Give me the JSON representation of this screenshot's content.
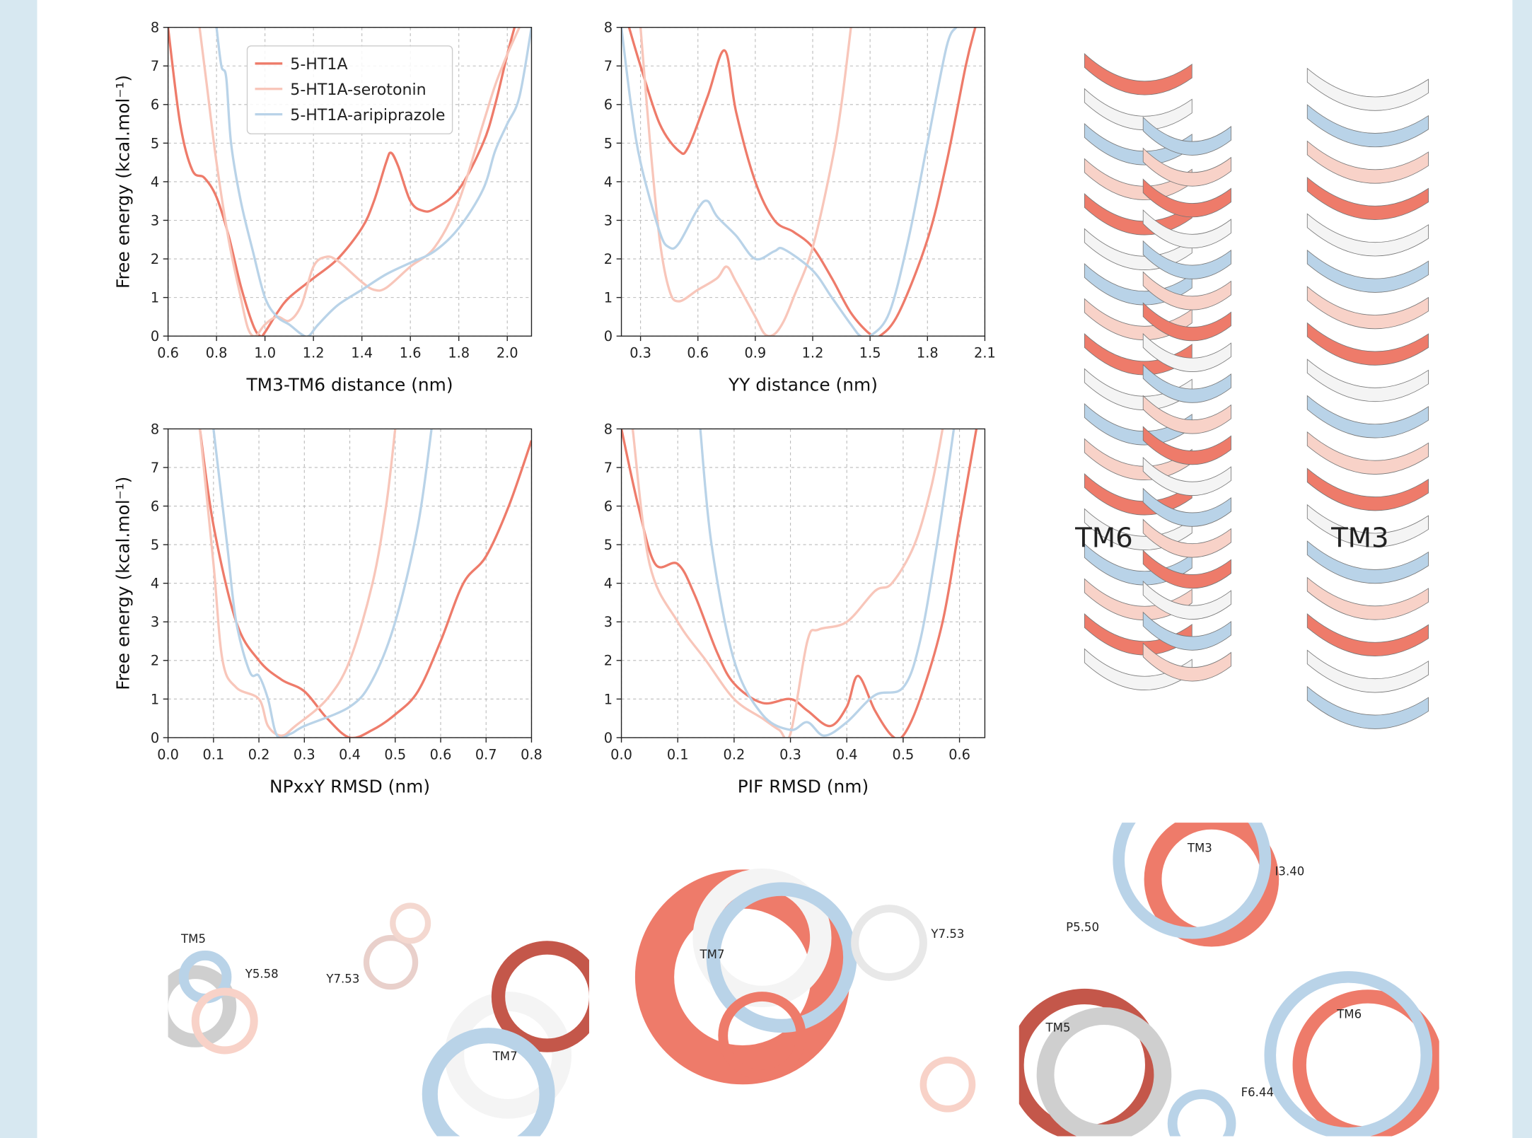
{
  "chart_data": [
    {
      "type": "line",
      "xlabel": "TM3-TM6 distance (nm)",
      "ylabel": "Free energy (kcal.mol⁻¹)",
      "xlim": [
        0.6,
        2.1
      ],
      "ylim": [
        0,
        8
      ],
      "xticks": [
        0.6,
        0.8,
        {
          "value": 1,
          "label": "1.0"
        },
        1.2,
        1.4,
        1.6,
        1.8,
        {
          "value": 2,
          "label": "2.0"
        }
      ],
      "yticks": [
        0,
        1,
        2,
        3,
        4,
        5,
        6,
        7,
        8
      ],
      "grid": true,
      "legend": "upper center",
      "series": [
        {
          "name": "5-HT1A",
          "color": "#ee7b6a",
          "x": [
            0.6,
            0.65,
            0.7,
            0.75,
            0.8,
            0.85,
            0.9,
            0.95,
            0.98,
            1.0,
            1.05,
            1.1,
            1.2,
            1.3,
            1.4,
            1.45,
            1.5,
            1.52,
            1.55,
            1.6,
            1.65,
            1.7,
            1.8,
            1.9,
            1.95,
            2.0,
            2.03
          ],
          "values": [
            8,
            5.5,
            4.3,
            4.1,
            3.6,
            2.6,
            1.3,
            0.3,
            0,
            0.1,
            0.6,
            1.0,
            1.5,
            2.0,
            2.8,
            3.5,
            4.5,
            4.75,
            4.4,
            3.5,
            3.25,
            3.3,
            3.8,
            5.0,
            6.0,
            7.3,
            8
          ]
        },
        {
          "name": "5-HT1A-serotonin",
          "color": "#f8c6ba",
          "x": [
            0.73,
            0.76,
            0.8,
            0.85,
            0.9,
            0.93,
            0.96,
            1.0,
            1.05,
            1.1,
            1.15,
            1.2,
            1.25,
            1.3,
            1.4,
            1.45,
            1.5,
            1.6,
            1.7,
            1.8,
            1.9,
            1.95,
            2.0,
            2.05
          ],
          "values": [
            8,
            6.5,
            4.5,
            2.5,
            1.0,
            0.2,
            0,
            0.3,
            0.5,
            0.4,
            0.8,
            1.8,
            2.05,
            1.95,
            1.4,
            1.2,
            1.25,
            1.8,
            2.3,
            3.5,
            5.5,
            6.5,
            7.3,
            8
          ]
        },
        {
          "name": "5-HT1A-aripiprazole",
          "color": "#b9d3e8",
          "x": [
            0.8,
            0.82,
            0.84,
            0.86,
            0.9,
            0.95,
            1.0,
            1.05,
            1.1,
            1.15,
            1.18,
            1.22,
            1.3,
            1.4,
            1.5,
            1.6,
            1.7,
            1.8,
            1.9,
            1.95,
            2.0,
            2.05,
            2.1
          ],
          "values": [
            8,
            7,
            6.7,
            5,
            3.5,
            2.2,
            1.0,
            0.5,
            0.3,
            0.05,
            0,
            0.3,
            0.8,
            1.2,
            1.6,
            1.9,
            2.2,
            2.8,
            3.8,
            4.8,
            5.5,
            6.2,
            8
          ]
        }
      ]
    },
    {
      "type": "line",
      "xlabel": "YY distance (nm)",
      "xlim": [
        0.2,
        2.1
      ],
      "ylim": [
        0,
        8
      ],
      "xticks": [
        0.3,
        0.6,
        0.9,
        1.2,
        1.5,
        1.8,
        2.1
      ],
      "yticks": [
        0,
        1,
        2,
        3,
        4,
        5,
        6,
        7,
        8
      ],
      "grid": true,
      "series": [
        {
          "color": "#ee7b6a",
          "x": [
            0.24,
            0.3,
            0.4,
            0.5,
            0.55,
            0.65,
            0.74,
            0.8,
            0.9,
            1.0,
            1.1,
            1.2,
            1.3,
            1.4,
            1.5,
            1.55,
            1.65,
            1.8,
            1.9,
            2.0,
            2.05
          ],
          "values": [
            8,
            7,
            5.5,
            4.8,
            4.9,
            6.2,
            7.4,
            5.8,
            4.0,
            3.0,
            2.7,
            2.3,
            1.5,
            0.6,
            0.05,
            0,
            0.6,
            2.5,
            4.5,
            7.0,
            8
          ]
        },
        {
          "color": "#f8c6ba",
          "x": [
            0.3,
            0.35,
            0.4,
            0.45,
            0.5,
            0.6,
            0.7,
            0.75,
            0.8,
            0.9,
            0.95,
            1.0,
            1.05,
            1.1,
            1.2,
            1.3,
            1.35,
            1.4
          ],
          "values": [
            8,
            5,
            2.5,
            1.2,
            0.9,
            1.2,
            1.5,
            1.8,
            1.4,
            0.5,
            0.05,
            0.05,
            0.4,
            1.0,
            2.3,
            4.5,
            6,
            8
          ]
        },
        {
          "color": "#b9d3e8",
          "x": [
            0.2,
            0.25,
            0.3,
            0.4,
            0.45,
            0.5,
            0.6,
            0.65,
            0.7,
            0.8,
            0.9,
            1.0,
            1.05,
            1.2,
            1.3,
            1.4,
            1.45,
            1.5,
            1.6,
            1.7,
            1.8,
            1.9,
            1.95
          ],
          "values": [
            8,
            6,
            4.5,
            2.7,
            2.3,
            2.4,
            3.3,
            3.5,
            3.1,
            2.6,
            2.0,
            2.2,
            2.25,
            1.7,
            1.0,
            0.3,
            0,
            0,
            0.6,
            2.5,
            5.0,
            7.5,
            8
          ]
        }
      ]
    },
    {
      "type": "line",
      "xlabel": "NPxxY RMSD (nm)",
      "ylabel": "Free energy (kcal.mol⁻¹)",
      "xlim": [
        0,
        0.8
      ],
      "ylim": [
        0,
        8
      ],
      "xticks": [
        {
          "value": 0,
          "label": "0.0"
        },
        0.1,
        0.2,
        0.3,
        0.4,
        0.5,
        0.6,
        0.7,
        0.8
      ],
      "yticks": [
        0,
        1,
        2,
        3,
        4,
        5,
        6,
        7,
        8
      ],
      "grid": true,
      "series": [
        {
          "color": "#ee7b6a",
          "x": [
            0.07,
            0.1,
            0.15,
            0.2,
            0.25,
            0.3,
            0.35,
            0.4,
            0.45,
            0.5,
            0.55,
            0.6,
            0.65,
            0.7,
            0.75,
            0.8
          ],
          "values": [
            8,
            5.5,
            3.0,
            2.0,
            1.5,
            1.2,
            0.5,
            0,
            0.2,
            0.6,
            1.2,
            2.5,
            4.0,
            4.7,
            6.0,
            7.7
          ]
        },
        {
          "color": "#f8c6ba",
          "x": [
            0.07,
            0.1,
            0.12,
            0.15,
            0.2,
            0.22,
            0.25,
            0.28,
            0.35,
            0.4,
            0.45,
            0.48,
            0.5
          ],
          "values": [
            8,
            4.5,
            2.0,
            1.3,
            1.0,
            0.3,
            0.05,
            0.3,
            1.0,
            2.0,
            4.0,
            6.0,
            8
          ]
        },
        {
          "color": "#b9d3e8",
          "x": [
            0.1,
            0.13,
            0.15,
            0.18,
            0.2,
            0.22,
            0.24,
            0.27,
            0.3,
            0.4,
            0.45,
            0.5,
            0.55,
            0.58
          ],
          "values": [
            8,
            5,
            3,
            1.7,
            1.6,
            1.0,
            0.05,
            0.1,
            0.3,
            0.8,
            1.5,
            3.0,
            5.5,
            8
          ]
        }
      ]
    },
    {
      "type": "line",
      "xlabel": "PIF RMSD (nm)",
      "xlim": [
        0,
        0.645
      ],
      "ylim": [
        0,
        8
      ],
      "xticks": [
        {
          "value": 0,
          "label": "0.0"
        },
        0.1,
        0.2,
        0.3,
        0.4,
        0.5,
        0.6
      ],
      "yticks": [
        0,
        1,
        2,
        3,
        4,
        5,
        6,
        7,
        8
      ],
      "grid": true,
      "series": [
        {
          "color": "#ee7b6a",
          "x": [
            0.0,
            0.03,
            0.06,
            0.1,
            0.13,
            0.17,
            0.2,
            0.25,
            0.3,
            0.33,
            0.37,
            0.4,
            0.42,
            0.45,
            0.48,
            0.5,
            0.53,
            0.57,
            0.6,
            0.63
          ],
          "values": [
            8,
            6,
            4.5,
            4.5,
            3.7,
            2.2,
            1.4,
            0.9,
            1.0,
            0.7,
            0.3,
            0.8,
            1.6,
            0.7,
            0.05,
            0.05,
            1.0,
            3.0,
            5.5,
            8
          ]
        },
        {
          "color": "#f8c6ba",
          "x": [
            0.02,
            0.05,
            0.1,
            0.15,
            0.2,
            0.25,
            0.28,
            0.3,
            0.33,
            0.35,
            0.4,
            0.45,
            0.48,
            0.52,
            0.55,
            0.57
          ],
          "values": [
            8,
            4.5,
            3.0,
            2.0,
            1.0,
            0.5,
            0.2,
            0.1,
            2.5,
            2.8,
            3.0,
            3.8,
            4.0,
            5.0,
            6.5,
            8
          ]
        },
        {
          "color": "#b9d3e8",
          "x": [
            0.14,
            0.16,
            0.2,
            0.25,
            0.3,
            0.33,
            0.36,
            0.4,
            0.45,
            0.5,
            0.53,
            0.56,
            0.59
          ],
          "values": [
            8,
            5,
            2.0,
            0.6,
            0.2,
            0.4,
            0.05,
            0.4,
            1.1,
            1.3,
            2.5,
            5.0,
            8
          ]
        }
      ]
    }
  ],
  "structure_labels": {
    "helices": [
      "TM6",
      "TM3"
    ],
    "panel_1": [
      "TM5",
      "Y5.58"
    ],
    "panel_2": [
      "Y7.53",
      "TM7"
    ],
    "panel_3": [
      "TM7",
      "Y7.53"
    ],
    "panel_4": [
      "TM3",
      "I3.40",
      "P5.50",
      "TM5",
      "TM6",
      "F6.44"
    ]
  }
}
